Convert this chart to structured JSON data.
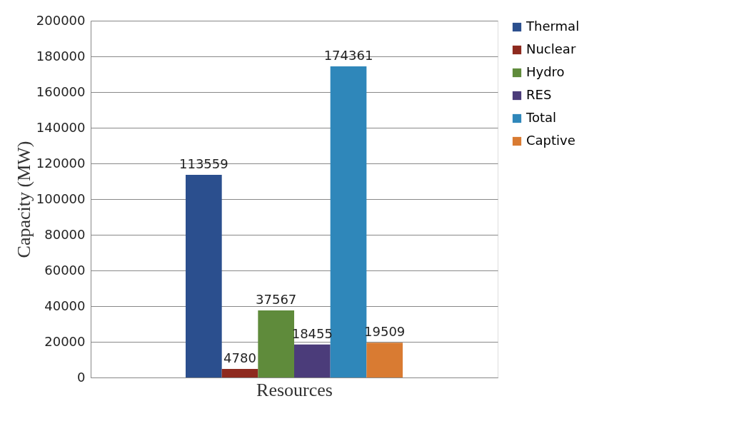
{
  "chart_data": {
    "type": "bar",
    "xlabel": "Resources",
    "ylabel": "Capacity (MW)",
    "categories": [
      null
    ],
    "series": [
      {
        "name": "Thermal",
        "color": "#2b4f8e",
        "values": [
          113559
        ]
      },
      {
        "name": "Nuclear",
        "color": "#8e2a1f",
        "values": [
          4780
        ]
      },
      {
        "name": "Hydro",
        "color": "#5f8b3b",
        "values": [
          37567
        ]
      },
      {
        "name": "RES",
        "color": "#4b3c7a",
        "values": [
          18455
        ]
      },
      {
        "name": "Total",
        "color": "#2f87ba",
        "values": [
          174361
        ]
      },
      {
        "name": "Captive",
        "color": "#d97b32",
        "values": [
          19509
        ]
      }
    ],
    "ylim": [
      0,
      200000
    ],
    "yticks": [
      0,
      20000,
      40000,
      60000,
      80000,
      100000,
      120000,
      140000,
      160000,
      180000,
      200000
    ],
    "grid": "y",
    "legend": "right",
    "data_labels": true,
    "tick_labels": "y"
  }
}
